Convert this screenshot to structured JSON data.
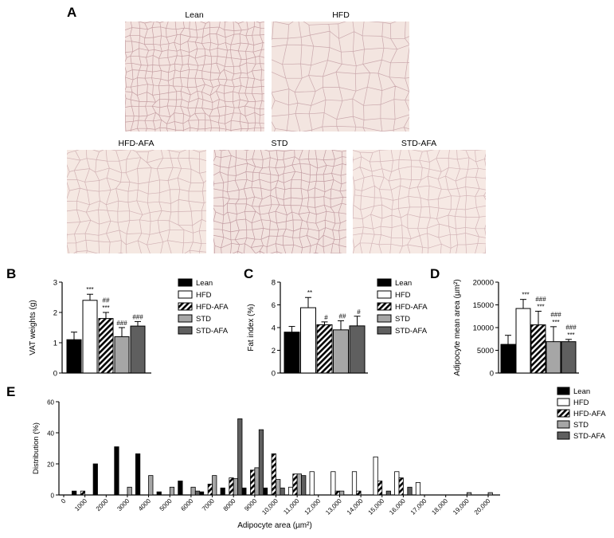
{
  "panel_letters": {
    "A": "A",
    "B": "B",
    "C": "C",
    "D": "D",
    "E": "E"
  },
  "micrographs": [
    {
      "label": "Lean",
      "tone": "#f3e3df",
      "membrane": "#b98d94"
    },
    {
      "label": "HFD",
      "tone": "#f3e5e0",
      "membrane": "#c09aa0"
    },
    {
      "label": "HFD-AFA",
      "tone": "#f5e8e2",
      "membrane": "#c8a4a9"
    },
    {
      "label": "STD",
      "tone": "#f2e3df",
      "membrane": "#b58a92"
    },
    {
      "label": "STD-AFA",
      "tone": "#f6e9e4",
      "membrane": "#caa8ad"
    }
  ],
  "groups": [
    {
      "name": "Lean",
      "fill": "#000000",
      "pattern": "solid"
    },
    {
      "name": "HFD",
      "fill": "#ffffff",
      "pattern": "solid"
    },
    {
      "name": "HFD-AFA",
      "fill": "#000000",
      "pattern": "hatch"
    },
    {
      "name": "STD",
      "fill": "#a6a6a6",
      "pattern": "solid"
    },
    {
      "name": "STD-AFA",
      "fill": "#5f5f5f",
      "pattern": "solid"
    }
  ],
  "chart_data": [
    {
      "panel": "B",
      "type": "bar",
      "ylabel": "VAT weights (g)",
      "ylim": [
        0,
        3
      ],
      "yticks": [
        "0",
        "1",
        "2",
        "3"
      ],
      "categories": [
        "Lean",
        "HFD",
        "HFD-AFA",
        "STD",
        "STD-AFA"
      ],
      "values": [
        1.1,
        2.4,
        1.8,
        1.2,
        1.55
      ],
      "errors": [
        0.25,
        0.2,
        0.2,
        0.3,
        0.15
      ],
      "annotations": [
        "",
        "***",
        "##\n***",
        "###",
        "###"
      ],
      "legend": "right"
    },
    {
      "panel": "C",
      "type": "bar",
      "ylabel": "Fat index (%)",
      "ylim": [
        0,
        8
      ],
      "yticks": [
        "0",
        "2",
        "4",
        "6",
        "8"
      ],
      "categories": [
        "Lean",
        "HFD",
        "HFD-AFA",
        "STD",
        "STD-AFA"
      ],
      "values": [
        3.6,
        5.75,
        4.25,
        3.8,
        4.15
      ],
      "errors": [
        0.5,
        0.9,
        0.25,
        0.8,
        0.85
      ],
      "annotations": [
        "",
        "**",
        "#",
        "##",
        "#"
      ],
      "legend": "right"
    },
    {
      "panel": "D",
      "type": "bar",
      "ylabel": "Adipocyte mean area (µm²)",
      "ylim": [
        0,
        20000
      ],
      "yticks": [
        "0",
        "5000",
        "10000",
        "15000",
        "20000"
      ],
      "categories": [
        "Lean",
        "HFD",
        "HFD-AFA",
        "STD",
        "STD-AFA"
      ],
      "values": [
        6300,
        14200,
        10600,
        6900,
        6900
      ],
      "errors": [
        2000,
        2000,
        3000,
        3300,
        500
      ],
      "annotations": [
        "",
        "***",
        "###\n***",
        "###\n***",
        "###\n***"
      ],
      "legend": "none"
    },
    {
      "panel": "E",
      "type": "bar",
      "xlabel": "Adipocyte area (µm²)",
      "ylabel": "Distribution (%)",
      "ylim": [
        0,
        60
      ],
      "yticks": [
        "0",
        "20",
        "40",
        "60"
      ],
      "categories": [
        "0",
        "1000",
        "2000",
        "3000",
        "4000",
        "5000",
        "6000",
        "7000",
        "8000",
        "9000",
        "10,000",
        "11,000",
        "12,000",
        "13,000",
        "14,000",
        "15,000",
        "16,000",
        "17,000",
        "18,000",
        "19,000",
        "20,000"
      ],
      "series": [
        {
          "name": "Lean",
          "values": [
            0,
            2.5,
            20,
            31,
            26.5,
            2,
            9,
            2,
            4.5,
            4.5,
            4.5,
            0,
            0,
            0,
            0,
            0,
            0,
            0,
            0,
            0,
            0
          ]
        },
        {
          "name": "HFD",
          "values": [
            0,
            0,
            0,
            0,
            0,
            0,
            0,
            0,
            0,
            0,
            0,
            5,
            15,
            15,
            15,
            24.5,
            15,
            8,
            0,
            0,
            0
          ]
        },
        {
          "name": "HFD-AFA",
          "values": [
            0,
            2.5,
            0,
            0,
            0,
            0,
            0,
            7,
            11,
            16,
            26.5,
            13.5,
            0,
            2.5,
            2.5,
            9,
            11,
            0,
            0,
            0,
            0
          ]
        },
        {
          "name": "STD",
          "values": [
            0,
            0,
            0,
            5,
            12.5,
            5,
            5,
            12.5,
            10.5,
            17.5,
            10,
            13.5,
            0,
            2.5,
            0,
            0,
            0,
            0,
            0,
            1.5,
            1.5
          ]
        },
        {
          "name": "STD-AFA",
          "values": [
            0,
            0,
            0,
            0,
            0,
            0,
            2.5,
            0,
            49,
            42,
            4.5,
            12.5,
            0,
            0,
            0,
            2.5,
            5,
            0,
            0,
            0,
            0
          ]
        }
      ],
      "legend": "right"
    }
  ]
}
